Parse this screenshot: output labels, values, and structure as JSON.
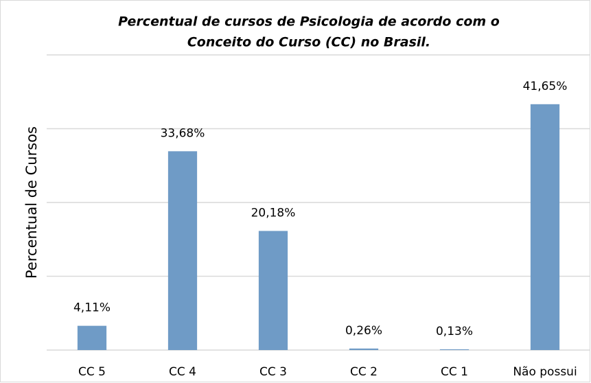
{
  "chart_data": {
    "type": "bar",
    "title": [
      "Percentual de cursos de Psicologia de acordo com o",
      "Conceito do Curso (CC) no Brasil."
    ],
    "y_label": "Percentual de Cursos",
    "categories": [
      "CC 5",
      "CC 4",
      "CC 3",
      "CC 2",
      "CC 1",
      "Não possui"
    ],
    "values": [
      4.11,
      33.68,
      20.18,
      0.26,
      0.13,
      41.65
    ],
    "value_labels": [
      "4,11%",
      "33,68%",
      "20,18%",
      "0,26%",
      "0,13%",
      "41,65%"
    ],
    "color": "#6f9bc6",
    "ylim": [
      0,
      50
    ],
    "yticks": [
      0,
      12.5,
      25,
      37.5,
      50
    ],
    "grid": true
  }
}
